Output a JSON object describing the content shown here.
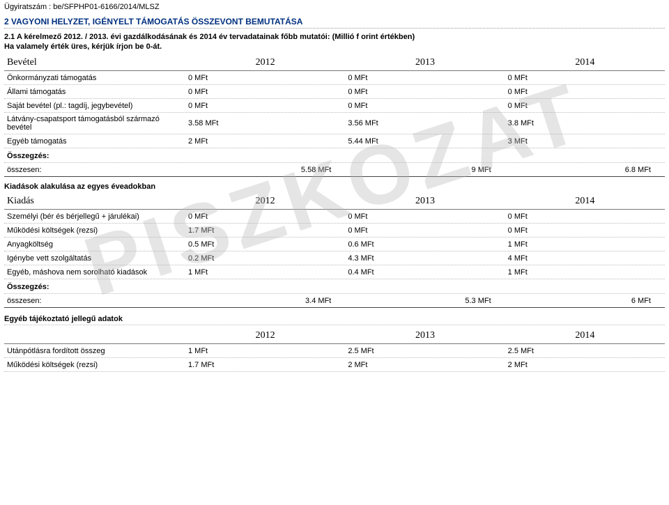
{
  "watermark": "PISZKOZAT",
  "ugyiratszam_label": "Ügyiratszám : ",
  "ugyiratszam": "be/SFPHP01-6166/2014/MLSZ",
  "section_main_title": "2 VAGYONI HELYZET, IGÉNYELT TÁMOGATÁS ÖSSZEVONT BEMUTATÁSA",
  "sub1": "2.1 A kérelmező 2012. / 2013. évi gazdálkodásának és 2014 év tervadatainak főbb mutatói: (Millió f orint értékben)",
  "sub2": "Ha valamely érték üres, kérjük írjon be 0-át.",
  "years": [
    "2012",
    "2013",
    "2014"
  ],
  "bevetel": {
    "header": "Bevétel",
    "rows": [
      {
        "label": "Önkormányzati támogatás",
        "v": [
          "0 MFt",
          "0 MFt",
          "0 MFt"
        ]
      },
      {
        "label": "Állami támogatás",
        "v": [
          "0 MFt",
          "0 MFt",
          "0 MFt"
        ]
      },
      {
        "label": "Saját bevétel (pl.: tagdíj, jegybevétel)",
        "v": [
          "0 MFt",
          "0 MFt",
          "0 MFt"
        ]
      },
      {
        "label": "Látvány-csapatsport támogatásból származó bevétel",
        "v": [
          "3.58 MFt",
          "3.56 MFt",
          "3.8 MFt"
        ]
      },
      {
        "label": "Egyéb támogatás",
        "v": [
          "2 MFt",
          "5.44 MFt",
          "3 MFt"
        ]
      }
    ],
    "osszegzes_label": "Összegzés:",
    "osszesen_label": "összesen:",
    "osszesen": [
      "5.58  MFt",
      "9  MFt",
      "6.8  MFt"
    ]
  },
  "kiadasok": {
    "title": "Kiadások alakulása az egyes éveadokban",
    "header": "Kiadás",
    "rows": [
      {
        "label": "Személyi (bér és bérjellegű + járulékai)",
        "v": [
          "0 MFt",
          "0 MFt",
          "0 MFt"
        ]
      },
      {
        "label": "Működési költségek (rezsi)",
        "v": [
          "1.7 MFt",
          "0 MFt",
          "0 MFt"
        ]
      },
      {
        "label": "Anyagköltség",
        "v": [
          "0.5 MFt",
          "0.6 MFt",
          "1 MFt"
        ]
      },
      {
        "label": "Igénybe vett szolgáltatás",
        "v": [
          "0.2 MFt",
          "4.3 MFt",
          "4 MFt"
        ]
      },
      {
        "label": "Egyéb, máshova nem sorolható kiadások",
        "v": [
          "1 MFt",
          "0.4 MFt",
          "1 MFt"
        ]
      }
    ],
    "osszegzes_label": "Összegzés:",
    "osszesen_label": "összesen:",
    "osszesen": [
      "3.4  MFt",
      "5.3  MFt",
      "6  MFt"
    ]
  },
  "egyeb": {
    "title": "Egyéb tájékoztató jellegű adatok",
    "rows": [
      {
        "label": "Utánpótlásra fordított összeg",
        "v": [
          "1 MFt",
          "2.5 MFt",
          "2.5 MFt"
        ]
      },
      {
        "label": "Működési költségek (rezsi)",
        "v": [
          "1.7 MFt",
          "2 MFt",
          "2 MFt"
        ]
      }
    ]
  }
}
